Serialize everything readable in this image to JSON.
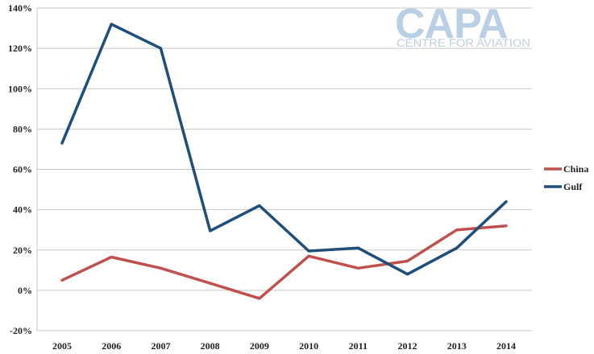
{
  "watermark": {
    "brand": "CAPA",
    "tagline": "CENTRE FOR AVIATION",
    "color": "#b9cfe6"
  },
  "chart_data": {
    "type": "line",
    "title": "",
    "xlabel": "",
    "ylabel": "",
    "categories": [
      "2005",
      "2006",
      "2007",
      "2008",
      "2009",
      "2010",
      "2011",
      "2012",
      "2013",
      "2014"
    ],
    "ylim": [
      -20,
      140
    ],
    "yticks": [
      -20,
      0,
      20,
      40,
      60,
      80,
      100,
      120,
      140
    ],
    "ytick_labels": [
      "-20%",
      "0%",
      "20%",
      "40%",
      "60%",
      "80%",
      "100%",
      "120%",
      "140%"
    ],
    "grid": true,
    "legend_position": "right",
    "series": [
      {
        "name": "China",
        "color": "#c0504d",
        "values": [
          5,
          16.5,
          11,
          3.5,
          -4,
          17,
          11,
          14.5,
          30,
          32
        ]
      },
      {
        "name": "Gulf",
        "color": "#1f4e79",
        "values": [
          73,
          132,
          120,
          29.5,
          42,
          19.5,
          21,
          8,
          21,
          44
        ]
      }
    ]
  }
}
